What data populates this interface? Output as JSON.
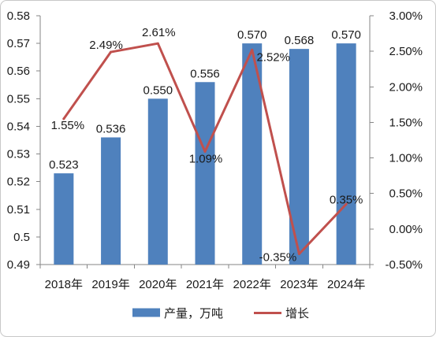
{
  "chart_data": {
    "type": "bar",
    "categories": [
      "2018年",
      "2019年",
      "2020年",
      "2021年",
      "2022年",
      "2023年",
      "2024年"
    ],
    "series": [
      {
        "name": "产量，万吨",
        "type": "bar",
        "color": "#4F81BD",
        "values": [
          0.523,
          0.536,
          0.55,
          0.556,
          0.57,
          0.568,
          0.57
        ],
        "labels": [
          "0.523",
          "0.536",
          "0.550",
          "0.556",
          "0.570",
          "0.568",
          "0.570"
        ]
      },
      {
        "name": "增长",
        "type": "line",
        "color": "#C0504D",
        "values": [
          1.55,
          2.49,
          2.61,
          1.09,
          2.52,
          -0.35,
          0.35
        ],
        "labels": [
          "1.55%",
          "2.49%",
          "2.61%",
          "1.09%",
          "2.52%",
          "-0.35%",
          "0.35%"
        ]
      }
    ],
    "ylim": [
      0.49,
      0.58
    ],
    "yticks": [
      "0.49",
      "0.5",
      "0.51",
      "0.52",
      "0.53",
      "0.54",
      "0.55",
      "0.56",
      "0.57",
      "0.58"
    ],
    "y2lim": [
      -0.5,
      3.0
    ],
    "y2ticks": [
      "-0.50%",
      "0.00%",
      "0.50%",
      "1.00%",
      "1.50%",
      "2.00%",
      "2.50%",
      "3.00%"
    ],
    "grid": false,
    "legend": "bottom"
  }
}
